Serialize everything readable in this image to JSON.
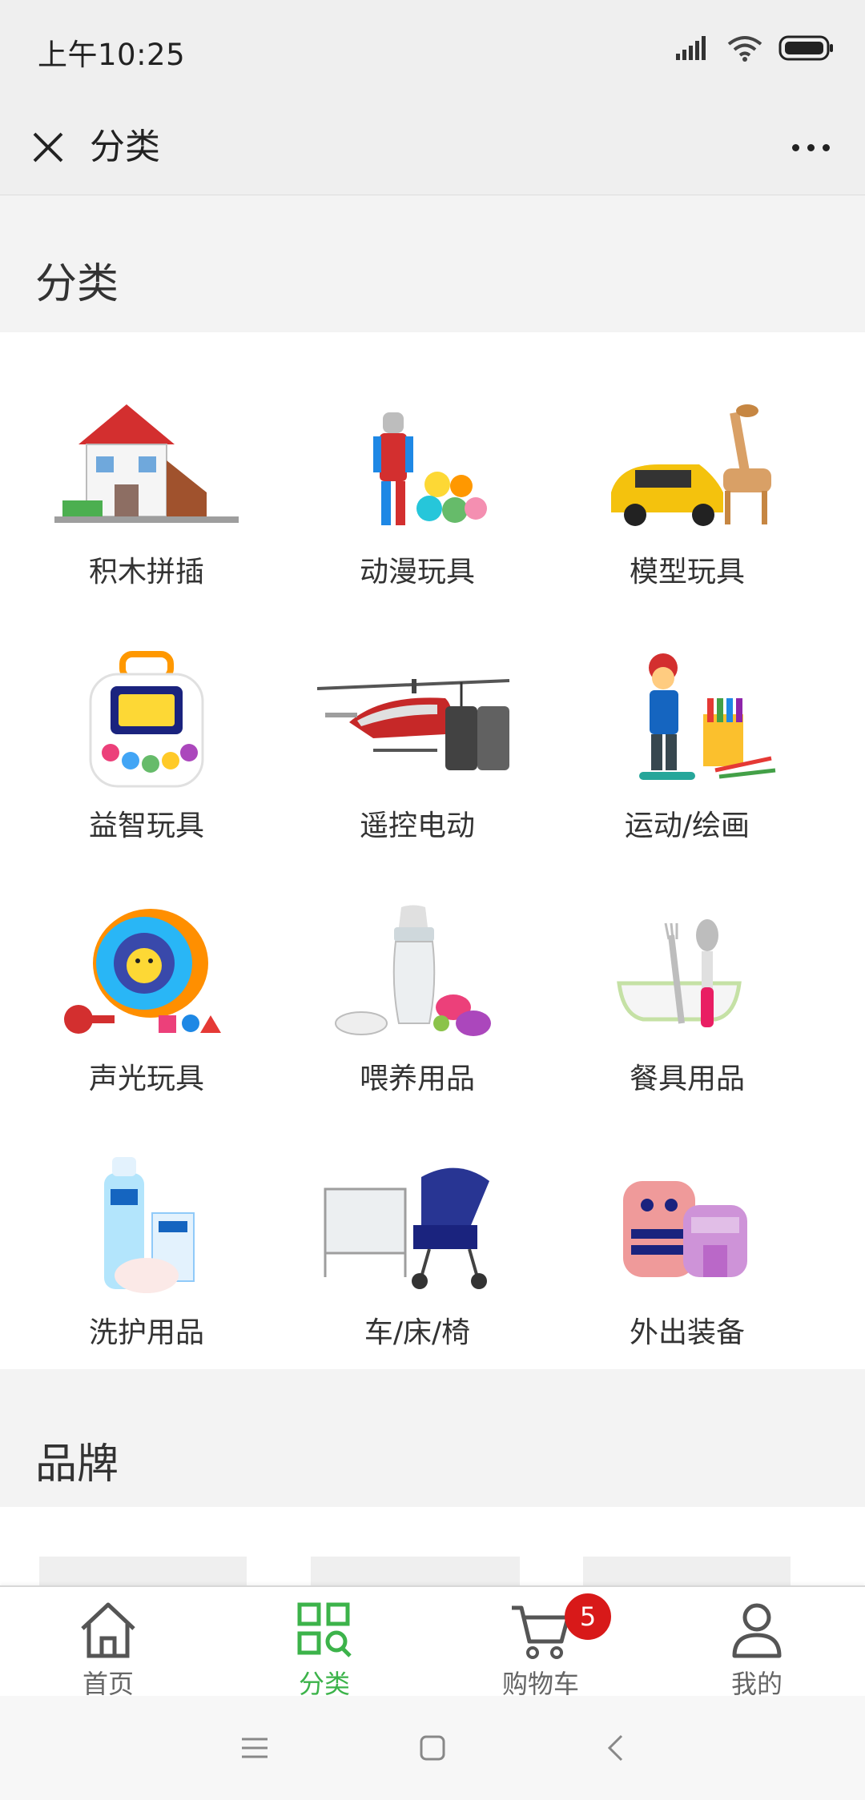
{
  "status_bar": {
    "time": "上午10:25",
    "icons": [
      "signal-icon",
      "wifi-icon",
      "battery-icon"
    ]
  },
  "nav": {
    "title": "分类",
    "close_icon": "close-icon",
    "more_icon": "more-icon"
  },
  "category_section": {
    "title": "分类"
  },
  "categories": [
    {
      "label": "积木拼插",
      "icon": "building-blocks-icon"
    },
    {
      "label": "动漫玩具",
      "icon": "anime-toy-icon"
    },
    {
      "label": "模型玩具",
      "icon": "model-toy-icon"
    },
    {
      "label": "益智玩具",
      "icon": "educational-toy-icon"
    },
    {
      "label": "遥控电动",
      "icon": "rc-helicopter-icon"
    },
    {
      "label": "运动/绘画",
      "icon": "sports-drawing-icon"
    },
    {
      "label": "声光玩具",
      "icon": "sound-light-toy-icon"
    },
    {
      "label": "喂养用品",
      "icon": "feeding-bottle-icon"
    },
    {
      "label": "餐具用品",
      "icon": "tableware-icon"
    },
    {
      "label": "洗护用品",
      "icon": "bath-care-icon"
    },
    {
      "label": "车/床/椅",
      "icon": "stroller-crib-icon"
    },
    {
      "label": "外出装备",
      "icon": "backpack-icon"
    }
  ],
  "brand_section": {
    "title": "品牌"
  },
  "tabs": [
    {
      "label": "首页",
      "icon": "home-icon",
      "active": false
    },
    {
      "label": "分类",
      "icon": "category-icon",
      "active": true
    },
    {
      "label": "购物车",
      "icon": "cart-icon",
      "active": false,
      "badge": "5"
    },
    {
      "label": "我的",
      "icon": "user-icon",
      "active": false
    }
  ],
  "colors": {
    "accent": "#3cb34a",
    "badge": "#d81919",
    "header_bg": "#efefef"
  }
}
